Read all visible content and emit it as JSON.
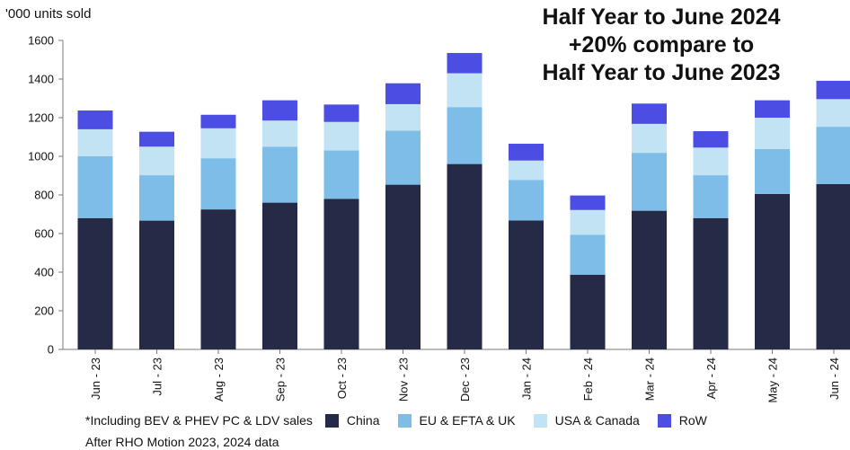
{
  "chart_data": {
    "type": "bar",
    "stacked": true,
    "title_lines": [
      "Half Year to June 2024",
      "+20% compare to",
      "Half Year to June 2023"
    ],
    "ylabel": "'000 units sold",
    "ylim": [
      0,
      1600
    ],
    "yticks": [
      0,
      200,
      400,
      600,
      800,
      1000,
      1200,
      1400,
      1600
    ],
    "grid": false,
    "categories": [
      "Jun - 23",
      "Jul - 23",
      "Aug - 23",
      "Sep - 23",
      "Oct - 23",
      "Nov - 23",
      "Dec - 23",
      "Jan - 24",
      "Feb - 24",
      "Mar - 24",
      "Apr - 24",
      "May - 24",
      "Jun - 24"
    ],
    "series": [
      {
        "name": "China",
        "color": "#252a47",
        "values": [
          680,
          667,
          725,
          760,
          780,
          853,
          960,
          668,
          387,
          718,
          680,
          805,
          856
        ]
      },
      {
        "name": "EU & EFTA & UK",
        "color": "#7dbde8",
        "values": [
          320,
          235,
          265,
          290,
          250,
          280,
          295,
          210,
          207,
          300,
          222,
          233,
          297
        ]
      },
      {
        "name": "USA & Canada",
        "color": "#c2e3f3",
        "values": [
          140,
          148,
          155,
          135,
          148,
          137,
          175,
          100,
          128,
          150,
          143,
          162,
          143
        ]
      },
      {
        "name": "RoW",
        "color": "#4b4de3",
        "values": [
          97,
          77,
          70,
          105,
          90,
          108,
          105,
          87,
          75,
          105,
          85,
          90,
          95
        ]
      }
    ],
    "legend_position": "bottom",
    "legend_note": "*Including BEV & PHEV PC & LDV sales"
  },
  "source_note": "After RHO Motion 2023, 2024 data"
}
